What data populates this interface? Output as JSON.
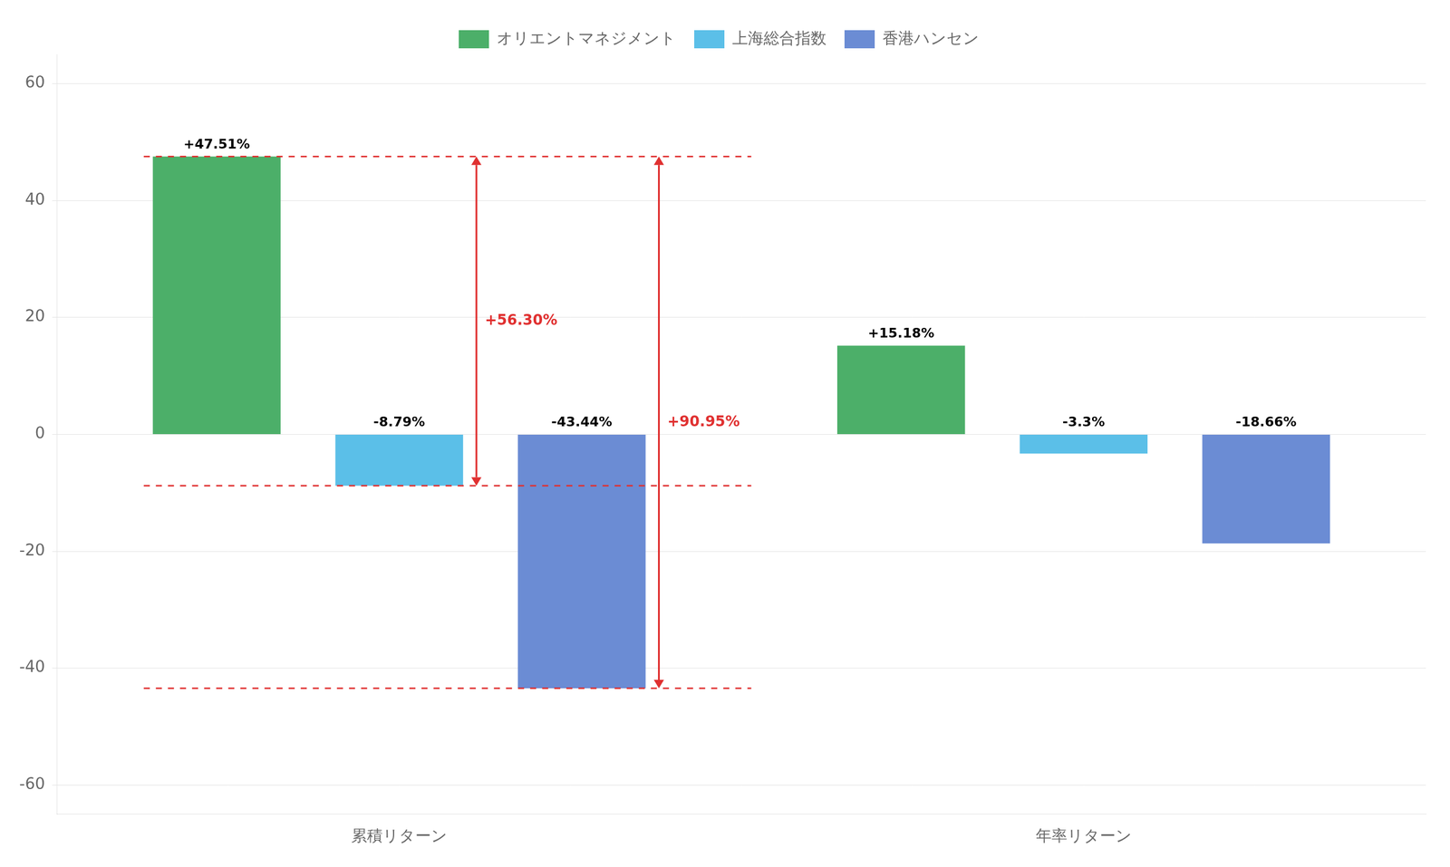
{
  "chart_data": {
    "type": "bar",
    "categories": [
      "累積リターン",
      "年率リターン"
    ],
    "series": [
      {
        "name": "オリエントマネジメント",
        "color": "#4caf69",
        "values": [
          47.51,
          15.18
        ],
        "value_labels": [
          "+47.51%",
          "+15.18%"
        ]
      },
      {
        "name": "上海総合指数",
        "color": "#5bbfe8",
        "values": [
          -8.79,
          -3.3
        ],
        "value_labels": [
          "-8.79%",
          "-3.3%"
        ]
      },
      {
        "name": "香港ハンセン",
        "color": "#6b8cd4",
        "values": [
          -43.44,
          -18.66
        ],
        "value_labels": [
          "-43.44%",
          "-18.66%"
        ]
      }
    ],
    "ylim": [
      -65,
      65
    ],
    "yticks": [
      -60,
      -40,
      -20,
      0,
      20,
      40,
      60
    ],
    "grid": true,
    "legend": "top",
    "data_labels": true,
    "annotations": [
      {
        "type": "hline",
        "y": 47.51,
        "line_style": "dashed",
        "color": "#e03030",
        "category": "累積リターン"
      },
      {
        "type": "hline",
        "y": -8.79,
        "line_style": "dashed",
        "color": "#e03030",
        "category": "累積リターン"
      },
      {
        "type": "hline",
        "y": -43.44,
        "line_style": "dashed",
        "color": "#e03030",
        "category": "累積リターン"
      },
      {
        "type": "arrow",
        "text": "+56.30%",
        "y_start": 47.51,
        "y_end": -8.79,
        "color": "#e03030",
        "category": "累積リターン",
        "series": "上海総合指数"
      },
      {
        "type": "arrow",
        "text": "+90.95%",
        "y_start": 47.51,
        "y_end": -43.44,
        "color": "#e03030",
        "category": "累積リターン",
        "series": "香港ハンセン"
      }
    ]
  }
}
